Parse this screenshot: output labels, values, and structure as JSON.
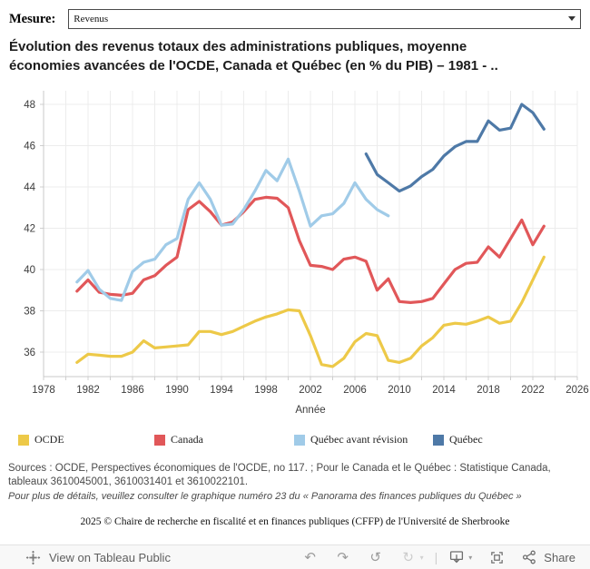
{
  "measure": {
    "label": "Mesure:",
    "value": "Revenus"
  },
  "title": {
    "line1": "Évolution des revenus totaux des administrations publiques, moyenne",
    "line2": "économies avancées de l'OCDE, Canada et Québec (en % du PIB)  –  1981 - .."
  },
  "chart_data": {
    "type": "line",
    "title": "Évolution des revenus totaux des administrations publiques, moyenne économies avancées de l'OCDE, Canada et Québec (en % du PIB) – 1981 - ..",
    "xlabel": "Année",
    "ylabel": "",
    "unit": "% du PIB",
    "xlim": [
      1978,
      2026
    ],
    "ylim": [
      34.8,
      48.7
    ],
    "x_ticks": [
      1978,
      1982,
      1986,
      1990,
      1994,
      1998,
      2002,
      2006,
      2010,
      2014,
      2018,
      2022,
      2026
    ],
    "y_ticks": [
      36,
      38,
      40,
      42,
      44,
      46,
      48
    ],
    "grid": true,
    "grid_x_step_years": 2,
    "legend_position": "bottom",
    "series": [
      {
        "name": "OCDE",
        "color": "#EDC948",
        "start_year": 1981,
        "values": [
          35.5,
          35.9,
          35.85,
          35.8,
          35.8,
          36.0,
          36.55,
          36.2,
          36.25,
          36.3,
          36.35,
          37.0,
          37.0,
          36.85,
          37.0,
          37.25,
          37.5,
          37.7,
          37.85,
          38.05,
          38.0,
          36.8,
          35.4,
          35.3,
          35.7,
          36.5,
          36.9,
          36.8,
          35.6,
          35.5,
          35.7,
          36.3,
          36.7,
          37.3,
          37.4,
          37.35,
          37.5,
          37.7,
          37.4,
          37.5,
          38.4,
          39.5,
          40.6
        ]
      },
      {
        "name": "Canada",
        "color": "#E15759",
        "start_year": 1981,
        "values": [
          38.95,
          39.5,
          38.9,
          38.8,
          38.75,
          38.85,
          39.5,
          39.7,
          40.2,
          40.6,
          42.9,
          43.3,
          42.8,
          42.15,
          42.3,
          42.8,
          43.4,
          43.5,
          43.45,
          43.0,
          41.4,
          40.2,
          40.15,
          40.0,
          40.5,
          40.6,
          40.4,
          39.0,
          39.55,
          38.45,
          38.4,
          38.45,
          38.6,
          39.3,
          40.0,
          40.3,
          40.35,
          41.1,
          40.6,
          41.5,
          42.4,
          41.2,
          42.1
        ]
      },
      {
        "name": "Québec avant révision",
        "color": "#A0CBE8",
        "start_year": 1981,
        "values": [
          39.4,
          39.95,
          39.05,
          38.6,
          38.5,
          39.9,
          40.35,
          40.5,
          41.2,
          41.5,
          43.4,
          44.2,
          43.4,
          42.15,
          42.2,
          42.9,
          43.8,
          44.8,
          44.3,
          45.35,
          43.8,
          42.1,
          42.6,
          42.7,
          43.2,
          44.2,
          43.4,
          42.9,
          42.6
        ]
      },
      {
        "name": "Québec",
        "color": "#4E79A7",
        "start_year": 2007,
        "values": [
          45.6,
          44.6,
          44.2,
          43.8,
          44.05,
          44.5,
          44.85,
          45.5,
          45.95,
          46.2,
          46.2,
          47.2,
          46.75,
          46.85,
          48.0,
          47.6,
          46.8
        ]
      }
    ]
  },
  "legend": [
    {
      "label": "OCDE",
      "color": "#EDC948"
    },
    {
      "label": "Canada",
      "color": "#E15759"
    },
    {
      "label": "Québec avant révision",
      "color": "#A0CBE8"
    },
    {
      "label": "Québec",
      "color": "#4E79A7"
    }
  ],
  "sources": {
    "main": "Sources : OCDE, Perspectives économiques de l'OCDE, no 117. ; Pour le Canada et le Québec : Statistique Canada, tableaux 3610045001, 3610031401 et 3610022101.",
    "note": "Pour plus de détails, veuillez consulter le graphique numéro 23 du « Panorama des finances publiques du Québec »"
  },
  "copyright": "2025 © Chaire de recherche en fiscalité et en finances publiques (CFFP) de l'Université de Sherbrooke",
  "toolbar": {
    "view_label": "View on Tableau Public",
    "share_label": "Share",
    "undo_glyph": "↶",
    "redo_glyph": "↷",
    "replay_glyph": "↺",
    "refresh_glyph": "↻",
    "caret_glyph": "▾",
    "separator_glyph": "|"
  }
}
